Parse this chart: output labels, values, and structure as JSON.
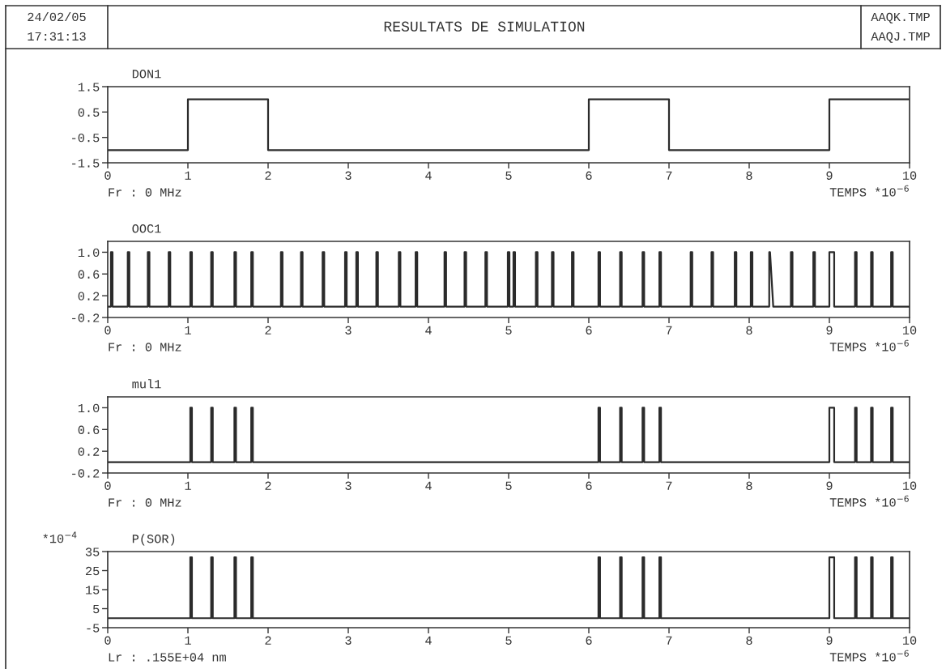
{
  "chart_data": [
    {
      "type": "other",
      "title": "RESULTATS DE SIMULATION",
      "annotations": [
        "24/02/05",
        "17:31:13",
        "AAQK.TMP",
        "AAQJ.TMP"
      ]
    },
    {
      "type": "line",
      "title": "DON1",
      "xlim": [
        0,
        10
      ],
      "xticks": [
        0,
        1,
        2,
        3,
        4,
        5,
        6,
        7,
        8,
        9,
        10
      ],
      "ylim": [
        -1.5,
        1.5
      ],
      "yticks": [
        -1.5,
        -0.5,
        0.5,
        1.5
      ],
      "annotations": [
        "Fr : 0 MHz",
        "TEMPS *10$^{−6}$"
      ],
      "series": [
        {
          "color": "#2b2b2b",
          "x": [
            0,
            1,
            1,
            2,
            2,
            6,
            6,
            7,
            7,
            9,
            9,
            10
          ],
          "values": [
            -1,
            -1,
            1,
            1,
            -1,
            -1,
            1,
            1,
            -1,
            -1,
            1,
            1
          ]
        }
      ]
    },
    {
      "type": "line",
      "title": "OOC1",
      "xlim": [
        0,
        10
      ],
      "xticks": [
        0,
        1,
        2,
        3,
        4,
        5,
        6,
        7,
        8,
        9,
        10
      ],
      "ylim": [
        -0.2,
        1.2
      ],
      "yticks": [
        -0.2,
        0.2,
        0.6,
        {
          "value": 1,
          "label": "1.0"
        }
      ],
      "annotations": [
        "Fr : 0 MHz",
        "TEMPS *10$^{−6}$"
      ],
      "series": [
        {
          "color": "#2b2b2b",
          "x": [
            0,
            0.04,
            0.04,
            0.06,
            0.06,
            0.25,
            0.25,
            0.27,
            0.27,
            0.5,
            0.5,
            0.52,
            0.52,
            0.76,
            0.76,
            0.78,
            0.78,
            1.03,
            1.03,
            1.05,
            1.05,
            1.29,
            1.29,
            1.31,
            1.31,
            1.58,
            1.58,
            1.6,
            1.6,
            1.79,
            1.79,
            1.81,
            1.81,
            2.16,
            2.16,
            2.18,
            2.18,
            2.41,
            2.41,
            2.43,
            2.43,
            2.68,
            2.68,
            2.7,
            2.7,
            2.96,
            2.96,
            2.98,
            2.98,
            3.1,
            3.1,
            3.12,
            3.12,
            3.35,
            3.35,
            3.37,
            3.37,
            3.63,
            3.63,
            3.65,
            3.65,
            3.84,
            3.84,
            3.86,
            3.86,
            4.2,
            4.2,
            4.22,
            4.22,
            4.45,
            4.45,
            4.47,
            4.47,
            4.71,
            4.71,
            4.73,
            4.73,
            4.99,
            4.99,
            5.01,
            5.01,
            5.06,
            5.06,
            5.08,
            5.08,
            5.34,
            5.34,
            5.36,
            5.36,
            5.54,
            5.54,
            5.56,
            5.56,
            5.79,
            5.79,
            5.81,
            5.81,
            6.12,
            6.12,
            6.14,
            6.14,
            6.39,
            6.39,
            6.41,
            6.41,
            6.67,
            6.67,
            6.69,
            6.69,
            6.88,
            6.88,
            6.9,
            6.9,
            7.27,
            7.27,
            7.29,
            7.29,
            7.53,
            7.53,
            7.55,
            7.55,
            7.82,
            7.82,
            7.84,
            7.84,
            8.02,
            8.02,
            8.04,
            8.04,
            8.25,
            8.25,
            8.26,
            8.3,
            8.52,
            8.52,
            8.54,
            8.54,
            8.8,
            8.8,
            8.82,
            8.82,
            9.0,
            9.0,
            9.06,
            9.06,
            9.32,
            9.32,
            9.34,
            9.34,
            9.52,
            9.52,
            9.54,
            9.54,
            9.77,
            9.77,
            9.79,
            9.79,
            10
          ],
          "values": [
            0,
            0,
            1,
            1,
            0,
            0,
            1,
            1,
            0,
            0,
            1,
            1,
            0,
            0,
            1,
            1,
            0,
            0,
            1,
            1,
            0,
            0,
            1,
            1,
            0,
            0,
            1,
            1,
            0,
            0,
            1,
            1,
            0,
            0,
            1,
            1,
            0,
            0,
            1,
            1,
            0,
            0,
            1,
            1,
            0,
            0,
            1,
            1,
            0,
            0,
            1,
            1,
            0,
            0,
            1,
            1,
            0,
            0,
            1,
            1,
            0,
            0,
            1,
            1,
            0,
            0,
            1,
            1,
            0,
            0,
            1,
            1,
            0,
            0,
            1,
            1,
            0,
            0,
            1,
            1,
            0,
            0,
            1,
            1,
            0,
            0,
            1,
            1,
            0,
            0,
            1,
            1,
            0,
            0,
            1,
            1,
            0,
            0,
            1,
            1,
            0,
            0,
            1,
            1,
            0,
            0,
            1,
            1,
            0,
            0,
            1,
            1,
            0,
            0,
            1,
            1,
            0,
            0,
            1,
            1,
            0,
            0,
            1,
            1,
            0,
            0,
            1,
            1,
            0,
            0,
            1,
            1,
            0,
            0,
            1,
            1,
            0,
            0,
            1,
            1,
            0,
            0,
            1,
            1,
            0,
            0,
            1,
            1,
            0,
            0,
            1,
            1,
            0,
            0,
            1,
            1,
            0,
            0
          ]
        }
      ]
    },
    {
      "type": "line",
      "title": "mul1",
      "xlim": [
        0,
        10
      ],
      "xticks": [
        0,
        1,
        2,
        3,
        4,
        5,
        6,
        7,
        8,
        9,
        10
      ],
      "ylim": [
        -0.2,
        1.2
      ],
      "yticks": [
        -0.2,
        0.2,
        0.6,
        {
          "value": 1,
          "label": "1.0"
        }
      ],
      "annotations": [
        "Fr : 0 MHz",
        "TEMPS *10$^{−6}$"
      ],
      "series": [
        {
          "color": "#2b2b2b",
          "x": [
            0,
            1.03,
            1.03,
            1.05,
            1.05,
            1.29,
            1.29,
            1.31,
            1.31,
            1.58,
            1.58,
            1.6,
            1.6,
            1.79,
            1.79,
            1.81,
            1.81,
            6.12,
            6.12,
            6.14,
            6.14,
            6.39,
            6.39,
            6.41,
            6.41,
            6.67,
            6.67,
            6.69,
            6.69,
            6.88,
            6.88,
            6.9,
            6.9,
            9.0,
            9.0,
            9.06,
            9.06,
            9.32,
            9.32,
            9.34,
            9.34,
            9.52,
            9.52,
            9.54,
            9.54,
            9.77,
            9.77,
            9.79,
            9.79,
            10
          ],
          "values": [
            0,
            0,
            1,
            1,
            0,
            0,
            1,
            1,
            0,
            0,
            1,
            1,
            0,
            0,
            1,
            1,
            0,
            0,
            1,
            1,
            0,
            0,
            1,
            1,
            0,
            0,
            1,
            1,
            0,
            0,
            1,
            1,
            0,
            0,
            1,
            1,
            0,
            0,
            1,
            1,
            0,
            0,
            1,
            1,
            0,
            0,
            1,
            1,
            0,
            0
          ]
        }
      ]
    },
    {
      "type": "line",
      "title": "P(SOR)",
      "ylabel": "*10$^{−4}$",
      "xlim": [
        0,
        10
      ],
      "xticks": [
        0,
        1,
        2,
        3,
        4,
        5,
        6,
        7,
        8,
        9,
        10
      ],
      "ylim": [
        -5,
        35
      ],
      "yticks": [
        -5,
        5,
        15,
        25,
        35
      ],
      "annotations": [
        "Lr : .155E+04 nm",
        "TEMPS *10$^{−6}$"
      ],
      "series": [
        {
          "color": "#2b2b2b",
          "x": [
            0,
            1.03,
            1.03,
            1.05,
            1.05,
            1.29,
            1.29,
            1.31,
            1.31,
            1.58,
            1.58,
            1.6,
            1.6,
            1.79,
            1.79,
            1.81,
            1.81,
            6.12,
            6.12,
            6.14,
            6.14,
            6.39,
            6.39,
            6.41,
            6.41,
            6.67,
            6.67,
            6.69,
            6.69,
            6.88,
            6.88,
            6.9,
            6.9,
            9.0,
            9.0,
            9.06,
            9.06,
            9.32,
            9.32,
            9.34,
            9.34,
            9.52,
            9.52,
            9.54,
            9.54,
            9.77,
            9.77,
            9.79,
            9.79,
            10
          ],
          "values": [
            0,
            0,
            32,
            32,
            0,
            0,
            32,
            32,
            0,
            0,
            32,
            32,
            0,
            0,
            32,
            32,
            0,
            0,
            32,
            32,
            0,
            0,
            32,
            32,
            0,
            0,
            32,
            32,
            0,
            0,
            32,
            32,
            0,
            0,
            32,
            32,
            0,
            0,
            32,
            32,
            0,
            0,
            32,
            32,
            0,
            0,
            32,
            32,
            0,
            0
          ]
        }
      ]
    }
  ]
}
